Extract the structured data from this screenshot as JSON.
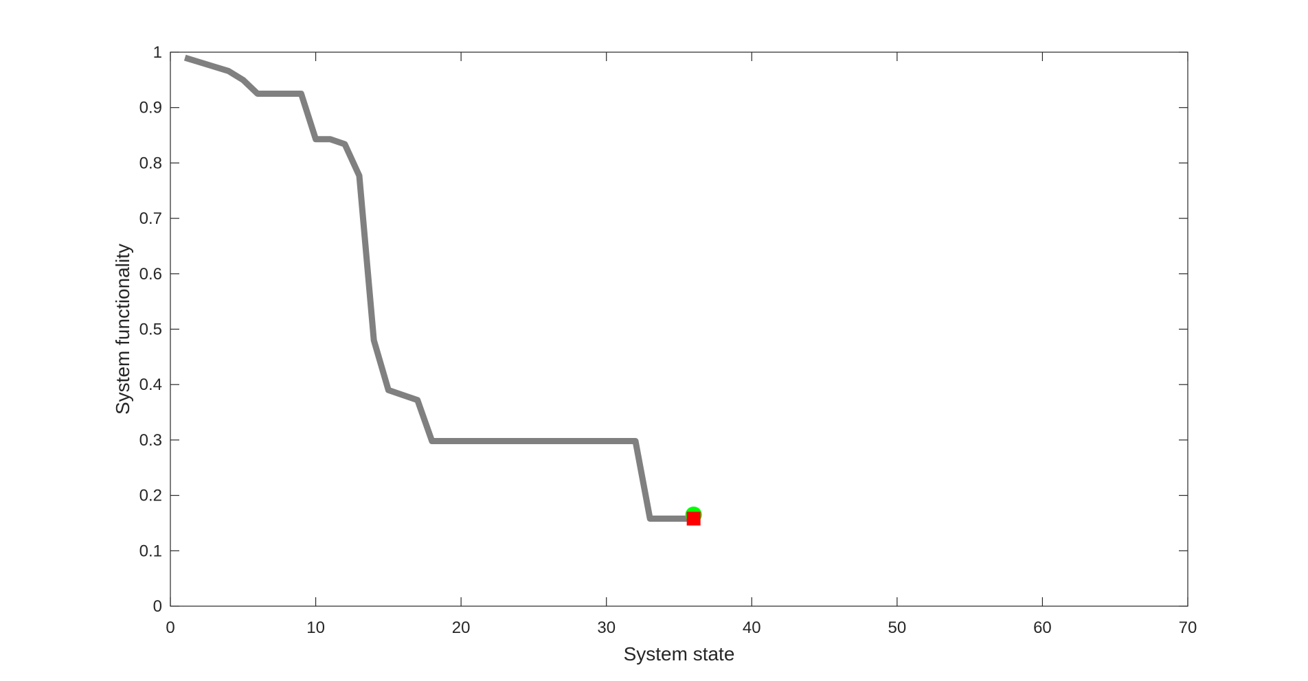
{
  "chart_data": {
    "type": "line",
    "title": "",
    "xlabel": "System state",
    "ylabel": "System functionality",
    "xlim": [
      0,
      70
    ],
    "ylim": [
      0,
      1
    ],
    "xticks": [
      0,
      10,
      20,
      30,
      40,
      50,
      60,
      70
    ],
    "yticks": [
      0,
      0.1,
      0.2,
      0.3,
      0.4,
      0.5,
      0.6,
      0.7,
      0.8,
      0.9,
      1
    ],
    "grid": false,
    "box": true,
    "series": [
      {
        "color": "#808080",
        "x": [
          1,
          2,
          3,
          4,
          5,
          6,
          7,
          8,
          9,
          10,
          11,
          12,
          13,
          14,
          15,
          16,
          17,
          18,
          19,
          20,
          21,
          22,
          23,
          24,
          25,
          26,
          27,
          28,
          29,
          30,
          31,
          32,
          33,
          34,
          35,
          36
        ],
        "y": [
          0.99,
          0.982,
          0.974,
          0.966,
          0.95,
          0.925,
          0.925,
          0.925,
          0.925,
          0.843,
          0.843,
          0.834,
          0.777,
          0.48,
          0.39,
          0.381,
          0.372,
          0.298,
          0.298,
          0.298,
          0.298,
          0.298,
          0.298,
          0.298,
          0.298,
          0.298,
          0.298,
          0.298,
          0.298,
          0.298,
          0.298,
          0.298,
          0.158,
          0.158,
          0.158,
          0.158
        ]
      }
    ],
    "markers": [
      {
        "shape": "circle",
        "color": "#00ff00",
        "x": 36,
        "y": 0.165
      },
      {
        "shape": "square",
        "color": "#ff0000",
        "x": 36,
        "y": 0.158
      }
    ]
  }
}
